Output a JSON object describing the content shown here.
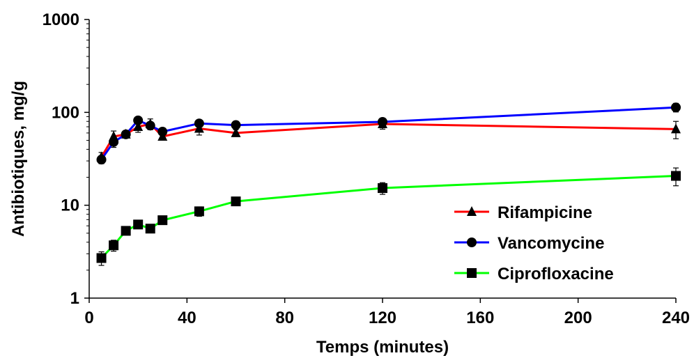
{
  "chart_data": {
    "type": "line",
    "title": "",
    "xlabel": "Temps (minutes)",
    "ylabel": "Antibiotiques, mg/g",
    "xlim": [
      0,
      240
    ],
    "ylim": [
      1,
      1000
    ],
    "yscale": "log",
    "xticks": [
      0,
      40,
      80,
      120,
      160,
      200,
      240
    ],
    "yticks": [
      1,
      10,
      100,
      1000
    ],
    "xtick_labels": [
      "0",
      "40",
      "80",
      "120",
      "160",
      "200",
      "240"
    ],
    "ytick_labels": [
      "1",
      "10",
      "100",
      "1000"
    ],
    "grid": false,
    "legend_position": "right",
    "series": [
      {
        "name": "Rifampicine",
        "color": "#ff0000",
        "marker": "triangle",
        "x": [
          5,
          10,
          15,
          20,
          25,
          30,
          45,
          60,
          120,
          240
        ],
        "y": [
          33,
          55,
          58,
          70,
          75,
          55,
          67,
          60,
          75,
          66
        ],
        "err": [
          4,
          8,
          4,
          9,
          10,
          4,
          10,
          5,
          9,
          14
        ]
      },
      {
        "name": "Vancomycine",
        "color": "#0000ff",
        "marker": "circle",
        "x": [
          5,
          10,
          15,
          20,
          25,
          30,
          45,
          60,
          120,
          240
        ],
        "y": [
          31,
          48,
          58,
          82,
          72,
          62,
          76,
          73,
          79,
          113
        ],
        "err": [
          3,
          6,
          4,
          6,
          6,
          4,
          4,
          4,
          6,
          12
        ]
      },
      {
        "name": "Ciprofloxacine",
        "color": "#00ff00",
        "marker": "square",
        "x": [
          5,
          10,
          15,
          20,
          25,
          30,
          45,
          60,
          120,
          240
        ],
        "y": [
          2.7,
          3.7,
          5.3,
          6.2,
          5.6,
          6.9,
          8.6,
          11,
          15.3,
          20.7
        ],
        "err": [
          0.45,
          0.5,
          0.5,
          0.5,
          0.5,
          0.5,
          1.0,
          0.8,
          2.2,
          4.5
        ]
      }
    ]
  }
}
